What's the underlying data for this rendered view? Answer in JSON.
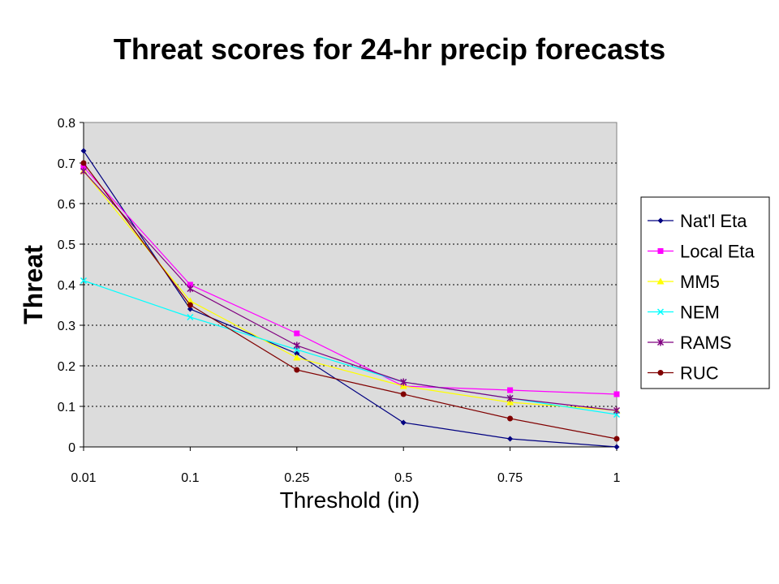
{
  "chart_data": {
    "type": "line",
    "title": "Threat scores for 24-hr precip forecasts",
    "xlabel": "Threshold (in)",
    "ylabel": "Threat",
    "categories": [
      "0.01",
      "0.1",
      "0.25",
      "0.5",
      "0.75",
      "1"
    ],
    "yticks": [
      "0",
      "0.1",
      "0.2",
      "0.3",
      "0.4",
      "0.5",
      "0.6",
      "0.7",
      "0.8"
    ],
    "ylim": [
      0,
      0.8
    ],
    "grid": "horizontal dotted",
    "legend_position": "right",
    "plot_background": "#dcdcdc",
    "series": [
      {
        "name": "Nat'l Eta",
        "color": "#000080",
        "marker": "diamond",
        "values": [
          0.73,
          0.34,
          0.23,
          0.06,
          0.02,
          0.0
        ]
      },
      {
        "name": "Local Eta",
        "color": "#ff00ff",
        "marker": "square",
        "values": [
          0.69,
          0.4,
          0.28,
          0.15,
          0.14,
          0.13
        ]
      },
      {
        "name": "MM5",
        "color": "#ffff00",
        "marker": "triangle",
        "values": [
          0.68,
          0.36,
          0.22,
          0.15,
          0.11,
          0.09
        ]
      },
      {
        "name": "NEM",
        "color": "#00ffff",
        "marker": "x",
        "values": [
          0.41,
          0.32,
          0.24,
          0.16,
          0.12,
          0.08
        ]
      },
      {
        "name": "RAMS",
        "color": "#800080",
        "marker": "star",
        "values": [
          0.68,
          0.39,
          0.25,
          0.16,
          0.12,
          0.09
        ]
      },
      {
        "name": "RUC",
        "color": "#800000",
        "marker": "circle",
        "values": [
          0.7,
          0.35,
          0.19,
          0.13,
          0.07,
          0.02
        ]
      }
    ]
  }
}
